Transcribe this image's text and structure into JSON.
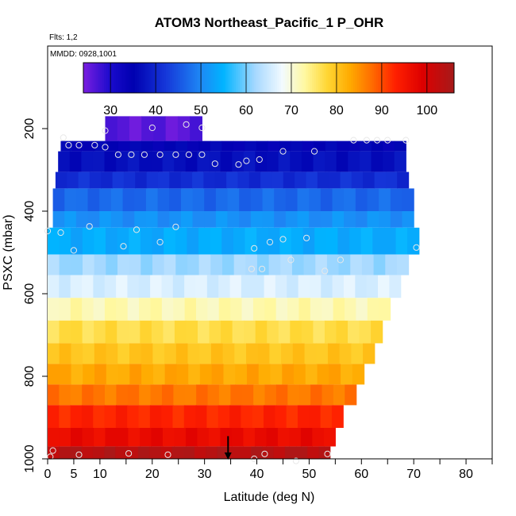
{
  "chart_data": {
    "type": "heatmap",
    "title": "ATOM3 Northeast_Pacific_1 P_OHR",
    "flights_label": "Flts: 1,2",
    "date_label": "MMDD: 0928,1001",
    "xlabel": "Latitude (deg N)",
    "ylabel": "PSXC (mbar)",
    "xlim": [
      0,
      85
    ],
    "ylim": [
      1000,
      0
    ],
    "x_ticks": [
      0,
      5,
      10,
      20,
      30,
      40,
      50,
      60,
      70,
      80
    ],
    "x_tick_marks": [
      0,
      5,
      10,
      15,
      20,
      25,
      30,
      35,
      40,
      45,
      50,
      55,
      60,
      65,
      70,
      75,
      80,
      85
    ],
    "y_ticks": [
      200,
      400,
      600,
      800,
      1000
    ],
    "colorbar": {
      "range": [
        24,
        106
      ],
      "ticks": [
        30,
        40,
        50,
        60,
        70,
        80,
        90,
        100
      ],
      "stops": [
        {
          "v": 24,
          "c": "#7a1ee0"
        },
        {
          "v": 30,
          "c": "#1a0acc"
        },
        {
          "v": 35,
          "c": "#0000b0"
        },
        {
          "v": 42,
          "c": "#1535d8"
        },
        {
          "v": 50,
          "c": "#1e88f5"
        },
        {
          "v": 55,
          "c": "#00b4ff"
        },
        {
          "v": 62,
          "c": "#a6d8ff"
        },
        {
          "v": 68,
          "c": "#f2faff"
        },
        {
          "v": 73,
          "c": "#fff8a0"
        },
        {
          "v": 78,
          "c": "#ffd633"
        },
        {
          "v": 83,
          "c": "#ffaa00"
        },
        {
          "v": 88,
          "c": "#ff6a00"
        },
        {
          "v": 93,
          "c": "#ff2000"
        },
        {
          "v": 99,
          "c": "#dd0000"
        },
        {
          "v": 106,
          "c": "#a61a1a"
        }
      ]
    },
    "bands": [
      {
        "p_top": 170,
        "p_bot": 230,
        "lat_min": 11,
        "lat_max": 29.5,
        "value": 26
      },
      {
        "p_top": 230,
        "p_bot": 255,
        "lat_min": 2.5,
        "lat_max": 68.5,
        "value": 35
      },
      {
        "p_top": 255,
        "p_bot": 305,
        "lat_min": 2,
        "lat_max": 68.5,
        "value": 37
      },
      {
        "p_top": 305,
        "p_bot": 345,
        "lat_min": 1.5,
        "lat_max": 69,
        "value": 41
      },
      {
        "p_top": 345,
        "p_bot": 400,
        "lat_min": 1,
        "lat_max": 70,
        "value": 47
      },
      {
        "p_top": 400,
        "p_bot": 440,
        "lat_min": 1,
        "lat_max": 70,
        "value": 51
      },
      {
        "p_top": 440,
        "p_bot": 505,
        "lat_min": 0,
        "lat_max": 71,
        "value": 54
      },
      {
        "p_top": 505,
        "p_bot": 555,
        "lat_min": 0,
        "lat_max": 69,
        "value": 62
      },
      {
        "p_top": 555,
        "p_bot": 610,
        "lat_min": 0,
        "lat_max": 67.5,
        "value": 66
      },
      {
        "p_top": 610,
        "p_bot": 665,
        "lat_min": 0,
        "lat_max": 65.5,
        "value": 72
      },
      {
        "p_top": 665,
        "p_bot": 720,
        "lat_min": 0,
        "lat_max": 64,
        "value": 77
      },
      {
        "p_top": 720,
        "p_bot": 770,
        "lat_min": 0,
        "lat_max": 62.5,
        "value": 80
      },
      {
        "p_top": 770,
        "p_bot": 820,
        "lat_min": 0,
        "lat_max": 60.5,
        "value": 83
      },
      {
        "p_top": 820,
        "p_bot": 870,
        "lat_min": 0,
        "lat_max": 59,
        "value": 87
      },
      {
        "p_top": 870,
        "p_bot": 925,
        "lat_min": 0,
        "lat_max": 56.5,
        "value": 93
      },
      {
        "p_top": 925,
        "p_bot": 970,
        "lat_min": 0,
        "lat_max": 55,
        "value": 97
      },
      {
        "p_top": 970,
        "p_bot": 1010,
        "lat_min": 0,
        "lat_max": 54,
        "value": 104
      }
    ],
    "points": [
      {
        "x": 11,
        "y": 205
      },
      {
        "x": 20,
        "y": 198
      },
      {
        "x": 26.5,
        "y": 190
      },
      {
        "x": 29.5,
        "y": 198
      },
      {
        "x": 3,
        "y": 222
      },
      {
        "x": 4,
        "y": 240
      },
      {
        "x": 6,
        "y": 240
      },
      {
        "x": 9,
        "y": 240
      },
      {
        "x": 11,
        "y": 245
      },
      {
        "x": 13.5,
        "y": 263
      },
      {
        "x": 16,
        "y": 263
      },
      {
        "x": 18.5,
        "y": 263
      },
      {
        "x": 21.5,
        "y": 263
      },
      {
        "x": 24.5,
        "y": 263
      },
      {
        "x": 27,
        "y": 263
      },
      {
        "x": 29.5,
        "y": 263
      },
      {
        "x": 32,
        "y": 285
      },
      {
        "x": 36.5,
        "y": 287
      },
      {
        "x": 38,
        "y": 278
      },
      {
        "x": 40.5,
        "y": 275
      },
      {
        "x": 45,
        "y": 255
      },
      {
        "x": 51,
        "y": 255
      },
      {
        "x": 58.5,
        "y": 228
      },
      {
        "x": 61,
        "y": 228
      },
      {
        "x": 63,
        "y": 228
      },
      {
        "x": 65,
        "y": 228
      },
      {
        "x": 68.5,
        "y": 228
      },
      {
        "x": 0,
        "y": 448
      },
      {
        "x": 2.5,
        "y": 452
      },
      {
        "x": 8,
        "y": 437
      },
      {
        "x": 17,
        "y": 445
      },
      {
        "x": 24.5,
        "y": 438
      },
      {
        "x": 5,
        "y": 495
      },
      {
        "x": 14.5,
        "y": 485
      },
      {
        "x": 21.5,
        "y": 475
      },
      {
        "x": 39.5,
        "y": 490
      },
      {
        "x": 42.5,
        "y": 475
      },
      {
        "x": 45,
        "y": 468
      },
      {
        "x": 46.5,
        "y": 518
      },
      {
        "x": 49.5,
        "y": 465
      },
      {
        "x": 56,
        "y": 518
      },
      {
        "x": 70.5,
        "y": 488
      },
      {
        "x": 39,
        "y": 540
      },
      {
        "x": 41,
        "y": 540
      },
      {
        "x": 53,
        "y": 545
      },
      {
        "x": 0.5,
        "y": 995
      },
      {
        "x": 1,
        "y": 980
      },
      {
        "x": 6,
        "y": 990
      },
      {
        "x": 15.5,
        "y": 987
      },
      {
        "x": 23,
        "y": 990
      },
      {
        "x": 39.5,
        "y": 1000
      },
      {
        "x": 41.5,
        "y": 988
      },
      {
        "x": 47.5,
        "y": 1005
      },
      {
        "x": 53.5,
        "y": 988
      }
    ],
    "marker": {
      "x": 34.5,
      "y_top": 945,
      "y_bottom": 1000
    }
  }
}
